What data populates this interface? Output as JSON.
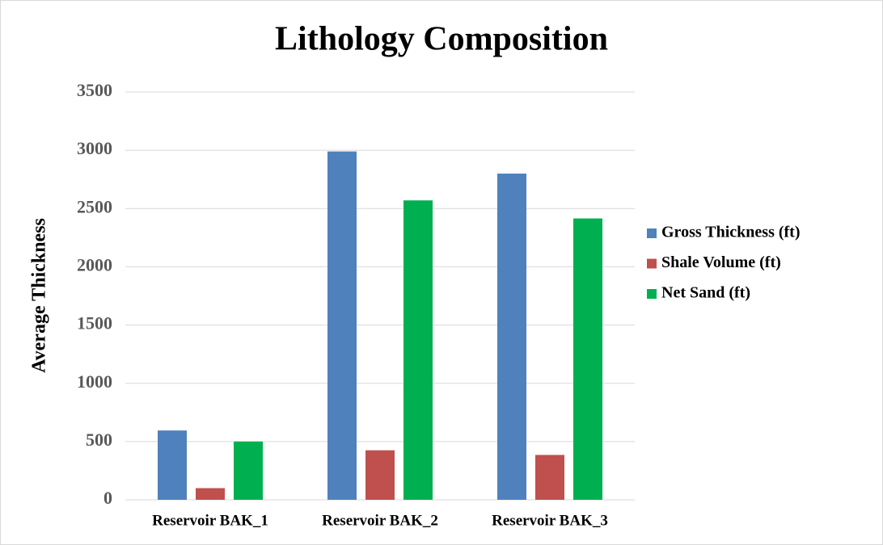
{
  "chart_data": {
    "type": "bar",
    "title": "Lithology Composition",
    "y_label": "Average Thickness",
    "categories": [
      "Reservoir BAK_1",
      "Reservoir BAK_2",
      "Reservoir BAK_3"
    ],
    "series": [
      {
        "name": "Gross Thickness (ft)",
        "color": "#4f81bd",
        "values": [
          595,
          2990,
          2800
        ]
      },
      {
        "name": "Shale Volume (ft)",
        "color": "#c0504d",
        "values": [
          100,
          425,
          385
        ]
      },
      {
        "name": "Net Sand (ft)",
        "color": "#00b050",
        "values": [
          500,
          2570,
          2415
        ]
      }
    ],
    "ylim": [
      0,
      3500
    ],
    "yticks": [
      0,
      500,
      1000,
      1500,
      2000,
      2500,
      3000,
      3500
    ],
    "grid": true,
    "legend": "right"
  }
}
